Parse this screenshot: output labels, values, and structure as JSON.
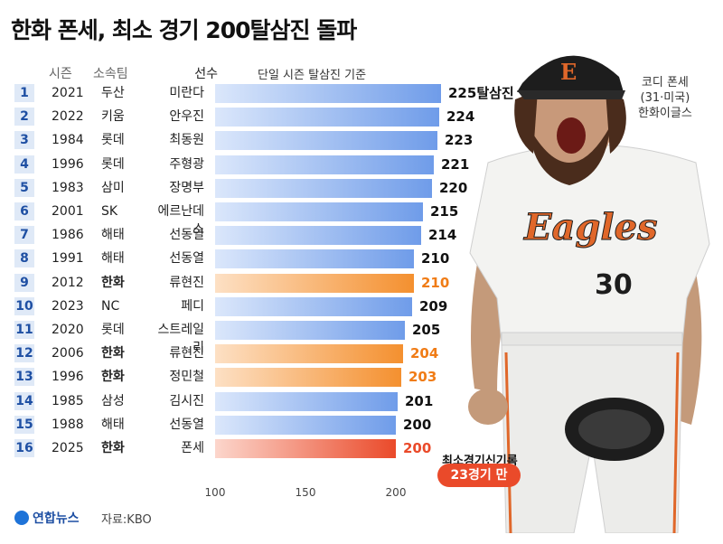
{
  "title": "한화 폰세, 최소 경기 200탈삼진 돌파",
  "headers": {
    "season": "시즌",
    "team": "소속팀",
    "player": "선수",
    "axis_title": "단일 시즌 탈삼진 기준"
  },
  "caption": [
    "코디 폰세",
    "(31·미국)",
    "한화이글스"
  ],
  "record_label": "최소경기신기록",
  "record_badge": "23경기 만",
  "logo_text": "연합뉴스",
  "source": "자료:KBO",
  "jersey": {
    "team_text": "Eagles",
    "number": "30"
  },
  "colors": {
    "blue": "#6f9ce9",
    "orange": "#f4902f",
    "red": "#ea4a2a",
    "rank_bg": "#dfe9f7",
    "rank_text": "#1e4fa3"
  },
  "chart_data": {
    "type": "bar",
    "orientation": "horizontal",
    "title": "한화 폰세, 최소 경기 200탈삼진 돌파",
    "xlabel": "단일 시즌 탈삼진 기준",
    "xlim": [
      100,
      230
    ],
    "ticks": [
      100,
      150,
      200
    ],
    "unit_suffix": "탈삼진",
    "rows": [
      {
        "rank": "1",
        "season": "2021",
        "team": "두산",
        "player": "미란다",
        "value": 225,
        "color": "blue"
      },
      {
        "rank": "2",
        "season": "2022",
        "team": "키움",
        "player": "안우진",
        "value": 224,
        "color": "blue"
      },
      {
        "rank": "3",
        "season": "1984",
        "team": "롯데",
        "player": "최동원",
        "value": 223,
        "color": "blue"
      },
      {
        "rank": "4",
        "season": "1996",
        "team": "롯데",
        "player": "주형광",
        "value": 221,
        "color": "blue"
      },
      {
        "rank": "5",
        "season": "1983",
        "team": "삼미",
        "player": "장명부",
        "value": 220,
        "color": "blue"
      },
      {
        "rank": "6",
        "season": "2001",
        "team": "SK",
        "player": "에르난데스",
        "value": 215,
        "color": "blue"
      },
      {
        "rank": "7",
        "season": "1986",
        "team": "해태",
        "player": "선동열",
        "value": 214,
        "color": "blue"
      },
      {
        "rank": "8",
        "season": "1991",
        "team": "해태",
        "player": "선동열",
        "value": 210,
        "color": "blue"
      },
      {
        "rank": "9",
        "season": "2012",
        "team": "한화",
        "player": "류현진",
        "value": 210,
        "color": "orange"
      },
      {
        "rank": "10",
        "season": "2023",
        "team": "NC",
        "player": "페디",
        "value": 209,
        "color": "blue"
      },
      {
        "rank": "11",
        "season": "2020",
        "team": "롯데",
        "player": "스트레일리",
        "value": 205,
        "color": "blue"
      },
      {
        "rank": "12",
        "season": "2006",
        "team": "한화",
        "player": "류현진",
        "value": 204,
        "color": "orange"
      },
      {
        "rank": "13",
        "season": "1996",
        "team": "한화",
        "player": "정민철",
        "value": 203,
        "color": "orange"
      },
      {
        "rank": "14",
        "season": "1985",
        "team": "삼성",
        "player": "김시진",
        "value": 201,
        "color": "blue"
      },
      {
        "rank": "15",
        "season": "1988",
        "team": "해태",
        "player": "선동열",
        "value": 200,
        "color": "blue"
      },
      {
        "rank": "16",
        "season": "2025",
        "team": "한화",
        "player": "폰세",
        "value": 200,
        "color": "red"
      }
    ]
  }
}
